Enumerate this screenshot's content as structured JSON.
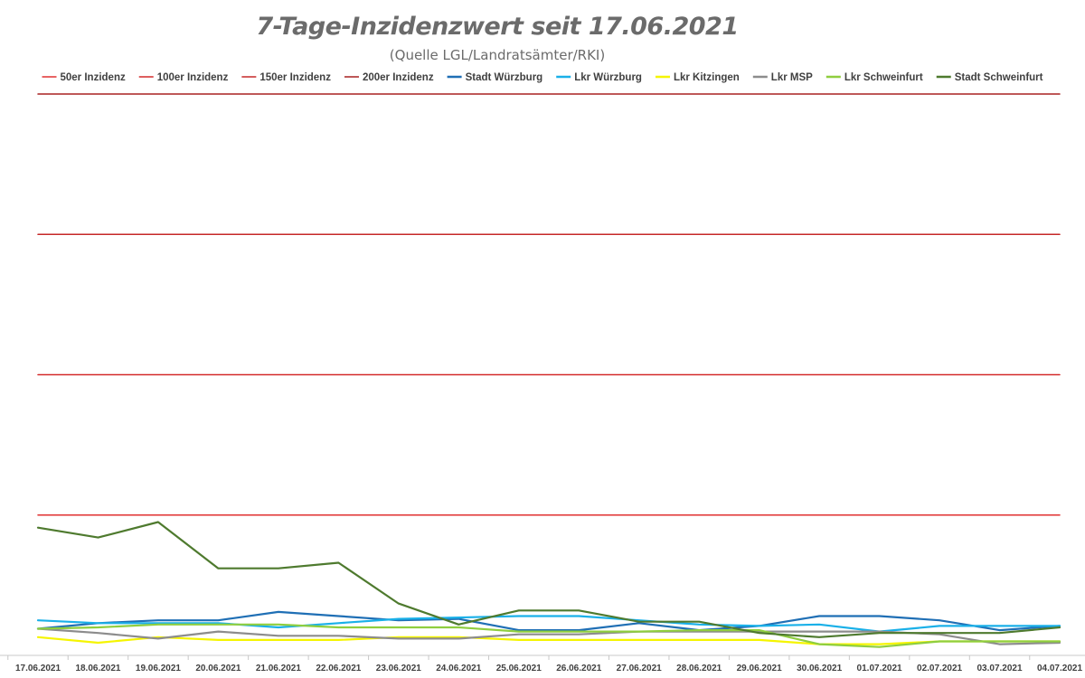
{
  "chart_data": {
    "type": "line",
    "title": "7-Tage-Inzidenzwert seit 17.06.2021",
    "subtitle": "(Quelle LGL/Landratsämter/RKI)",
    "xlabel": "",
    "ylabel": "",
    "ylim": [
      0,
      200
    ],
    "grid": false,
    "legend_position": "top",
    "categories": [
      "17.06.2021",
      "18.06.2021",
      "19.06.2021",
      "20.06.2021",
      "21.06.2021",
      "22.06.2021",
      "23.06.2021",
      "24.06.2021",
      "25.06.2021",
      "26.06.2021",
      "27.06.2021",
      "28.06.2021",
      "29.06.2021",
      "30.06.2021",
      "01.07.2021",
      "02.07.2021",
      "03.07.2021",
      "04.07.2021"
    ],
    "series": [
      {
        "name": "50er Inzidenz",
        "color": "#e03030",
        "values": [
          50,
          50,
          50,
          50,
          50,
          50,
          50,
          50,
          50,
          50,
          50,
          50,
          50,
          50,
          50,
          50,
          50,
          50
        ]
      },
      {
        "name": "100er Inzidenz",
        "color": "#d42a2a",
        "values": [
          100,
          100,
          100,
          100,
          100,
          100,
          100,
          100,
          100,
          100,
          100,
          100,
          100,
          100,
          100,
          100,
          100,
          100
        ]
      },
      {
        "name": "150er Inzidenz",
        "color": "#c62828",
        "values": [
          150,
          150,
          150,
          150,
          150,
          150,
          150,
          150,
          150,
          150,
          150,
          150,
          150,
          150,
          150,
          150,
          150,
          150
        ]
      },
      {
        "name": "200er Inzidenz",
        "color": "#a82020",
        "values": [
          200,
          200,
          200,
          200,
          200,
          200,
          200,
          200,
          200,
          200,
          200,
          200,
          200,
          200,
          200,
          200,
          200,
          200
        ]
      },
      {
        "name": "Stadt Würzburg",
        "color": "#1f6fb5",
        "values": [
          9.5,
          11.5,
          12.5,
          12.5,
          15.5,
          14,
          12.5,
          13,
          9,
          9,
          11.5,
          9,
          10.5,
          14,
          14,
          12.5,
          9,
          10.5
        ]
      },
      {
        "name": "Lkr Würzburg",
        "color": "#1ab0e8",
        "values": [
          12.5,
          11.5,
          11.5,
          11.5,
          10,
          11.5,
          13,
          13.5,
          14,
          14,
          12.5,
          11,
          10.5,
          11,
          8.5,
          10.5,
          10.5,
          10.5
        ]
      },
      {
        "name": "Lkr Kitzingen",
        "color": "#f5f500",
        "values": [
          6.5,
          4.5,
          6.5,
          5.5,
          5.5,
          5.5,
          6.5,
          6.5,
          5.5,
          5.5,
          5.5,
          5.5,
          5.5,
          4,
          4,
          5,
          5,
          5
        ]
      },
      {
        "name": "Lkr MSP",
        "color": "#8c8c8c",
        "values": [
          9.5,
          8,
          6,
          8.5,
          7,
          7,
          6,
          6,
          7.5,
          7.5,
          8.5,
          8.5,
          8.5,
          8.5,
          8.5,
          7.5,
          4,
          4.5
        ]
      },
      {
        "name": "Lkr Schweinfurt",
        "color": "#8fce3f",
        "values": [
          9.5,
          10,
          11,
          11,
          11,
          10,
          10,
          10,
          8.5,
          8.5,
          8.5,
          9,
          9,
          4,
          3,
          5,
          5,
          5
        ]
      },
      {
        "name": "Stadt Schweinfurt",
        "color": "#4e7a2e",
        "values": [
          45.5,
          42,
          47.5,
          31,
          31,
          33,
          18.5,
          11,
          16,
          16,
          12,
          12,
          8,
          6.5,
          8,
          8,
          8,
          10
        ]
      }
    ]
  }
}
